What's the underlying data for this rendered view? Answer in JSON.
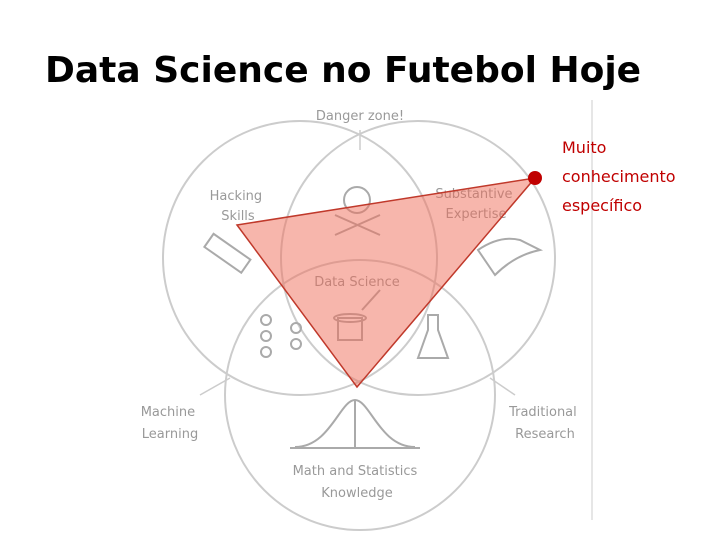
{
  "title": "Data Science no Futebol Hoje",
  "diagram": {
    "danger_zone": "Danger zone!",
    "hacking": [
      "Hacking",
      "Skills"
    ],
    "substantive": [
      "Substantive",
      "Expertise"
    ],
    "data_science": "Data Science",
    "machine_learning": [
      "Machine",
      "Learning"
    ],
    "traditional_research": [
      "Traditional",
      "Research"
    ],
    "math_stats": [
      "Math and Statistics",
      "Knowledge"
    ]
  },
  "annotation": [
    "Muito",
    "conhecimento",
    "específico"
  ]
}
